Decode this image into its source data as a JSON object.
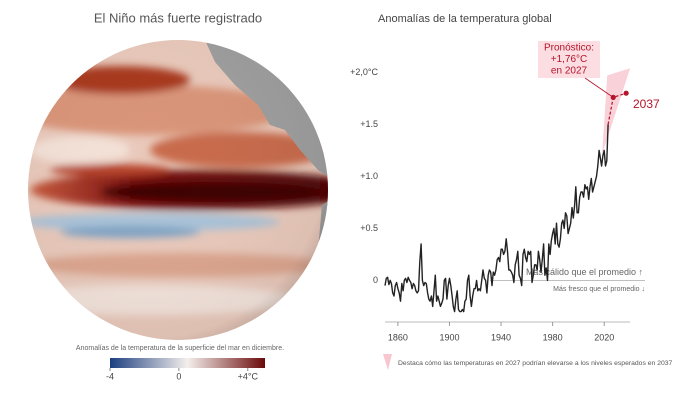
{
  "map": {
    "title": "El Niño más fuerte registrado",
    "caption": "Anomalías de la temperatura de la superficie del mar en diciembre.",
    "colorbar": {
      "lim": [
        -4,
        5
      ],
      "ticks": [
        -4,
        0,
        {
          "value": 4,
          "label": "+4°C"
        }
      ],
      "colors": [
        "#1d3f80",
        "#f4efec",
        "#6a0a0a"
      ]
    }
  },
  "chart_data": {
    "type": "line",
    "title": "Anomalías de la temperatura global",
    "xlim": [
      1850,
      2040
    ],
    "xticks": [
      1860,
      1900,
      1940,
      1980,
      2020
    ],
    "ylim": [
      -0.4,
      2.1
    ],
    "yticks": [
      0,
      {
        "value": 0.5,
        "label": "+0.5"
      },
      {
        "value": 1,
        "label": "+1.0"
      },
      {
        "value": 1.5,
        "label": "+1.5"
      },
      {
        "value": 2,
        "label": "+2,0°C"
      }
    ],
    "series": [
      {
        "color": "#222222",
        "x": [
          1850,
          1851,
          1852,
          1853,
          1854,
          1855,
          1856,
          1857,
          1858,
          1859,
          1860,
          1861,
          1862,
          1863,
          1864,
          1865,
          1866,
          1867,
          1868,
          1869,
          1870,
          1871,
          1872,
          1873,
          1874,
          1875,
          1876,
          1877,
          1878,
          1879,
          1880,
          1881,
          1882,
          1883,
          1884,
          1885,
          1886,
          1887,
          1888,
          1889,
          1890,
          1891,
          1892,
          1893,
          1894,
          1895,
          1896,
          1897,
          1898,
          1899,
          1900,
          1901,
          1902,
          1903,
          1904,
          1905,
          1906,
          1907,
          1908,
          1909,
          1910,
          1911,
          1912,
          1913,
          1914,
          1915,
          1916,
          1917,
          1918,
          1919,
          1920,
          1921,
          1922,
          1923,
          1924,
          1925,
          1926,
          1927,
          1928,
          1929,
          1930,
          1931,
          1932,
          1933,
          1934,
          1935,
          1936,
          1937,
          1938,
          1939,
          1940,
          1941,
          1942,
          1943,
          1944,
          1945,
          1946,
          1947,
          1948,
          1949,
          1950,
          1951,
          1952,
          1953,
          1954,
          1955,
          1956,
          1957,
          1958,
          1959,
          1960,
          1961,
          1962,
          1963,
          1964,
          1965,
          1966,
          1967,
          1968,
          1969,
          1970,
          1971,
          1972,
          1973,
          1974,
          1975,
          1976,
          1977,
          1978,
          1979,
          1980,
          1981,
          1982,
          1983,
          1984,
          1985,
          1986,
          1987,
          1988,
          1989,
          1990,
          1991,
          1992,
          1993,
          1994,
          1995,
          1996,
          1997,
          1998,
          1999,
          2000,
          2001,
          2002,
          2003,
          2004,
          2005,
          2006,
          2007,
          2008,
          2009,
          2010,
          2011,
          2012,
          2013,
          2014,
          2015,
          2016,
          2017,
          2018,
          2019,
          2020,
          2021,
          2022,
          2023
        ],
        "values": [
          -0.05,
          0.02,
          0.03,
          -0.04,
          0.0,
          -0.03,
          -0.12,
          -0.15,
          -0.05,
          -0.02,
          -0.08,
          -0.12,
          -0.2,
          -0.03,
          -0.1,
          0.0,
          0.02,
          -0.02,
          0.03,
          0.0,
          -0.02,
          -0.08,
          -0.03,
          -0.05,
          -0.1,
          -0.12,
          -0.1,
          0.18,
          0.35,
          0.0,
          -0.05,
          -0.02,
          -0.03,
          -0.12,
          -0.18,
          -0.2,
          -0.15,
          -0.25,
          -0.1,
          0.05,
          -0.2,
          -0.15,
          -0.2,
          -0.25,
          -0.22,
          -0.18,
          0.0,
          0.02,
          -0.18,
          -0.05,
          0.02,
          -0.05,
          -0.15,
          -0.25,
          -0.3,
          -0.18,
          -0.1,
          -0.28,
          -0.3,
          -0.3,
          -0.28,
          -0.3,
          -0.2,
          -0.18,
          0.0,
          0.05,
          -0.15,
          -0.25,
          -0.15,
          -0.08,
          -0.08,
          0.0,
          -0.1,
          -0.08,
          -0.1,
          0.0,
          0.1,
          0.02,
          0.0,
          -0.12,
          0.05,
          0.1,
          0.08,
          -0.05,
          0.08,
          0.05,
          0.1,
          0.2,
          0.22,
          0.18,
          0.3,
          0.3,
          0.25,
          0.28,
          0.4,
          0.28,
          0.1,
          0.1,
          0.08,
          0.05,
          -0.02,
          0.15,
          0.2,
          0.28,
          0.05,
          0.02,
          -0.05,
          0.25,
          0.3,
          0.22,
          0.18,
          0.28,
          0.25,
          0.28,
          -0.02,
          0.05,
          0.15,
          0.15,
          0.1,
          0.28,
          0.2,
          0.08,
          0.2,
          0.35,
          0.05,
          0.12,
          0.0,
          0.35,
          0.25,
          0.38,
          0.45,
          0.5,
          0.35,
          0.55,
          0.35,
          0.32,
          0.4,
          0.55,
          0.58,
          0.5,
          0.65,
          0.62,
          0.45,
          0.5,
          0.55,
          0.7,
          0.6,
          0.72,
          0.9,
          0.65,
          0.65,
          0.8,
          0.85,
          0.85,
          0.8,
          0.92,
          0.88,
          0.9,
          0.78,
          0.9,
          0.98,
          0.85,
          0.9,
          0.95,
          1.0,
          1.1,
          1.25,
          1.18,
          1.1,
          1.2,
          1.25,
          1.1,
          1.15,
          1.5
        ]
      }
    ],
    "forecast": {
      "color": "#b5142a",
      "x": [
        2027,
        2037
      ],
      "values": [
        1.76,
        1.8
      ]
    },
    "forecast_label": [
      "Pronóstico:",
      "+1,76°C",
      "en 2027"
    ],
    "forecast_year_label": "2037",
    "warm_label": "Más cálido que el promedio ↑",
    "cool_label": "Más fresco que el promedio ↓",
    "legend": "Destaca cómo las temperaturas en 2027 podrían elevarse a los niveles esperados en 2037"
  }
}
